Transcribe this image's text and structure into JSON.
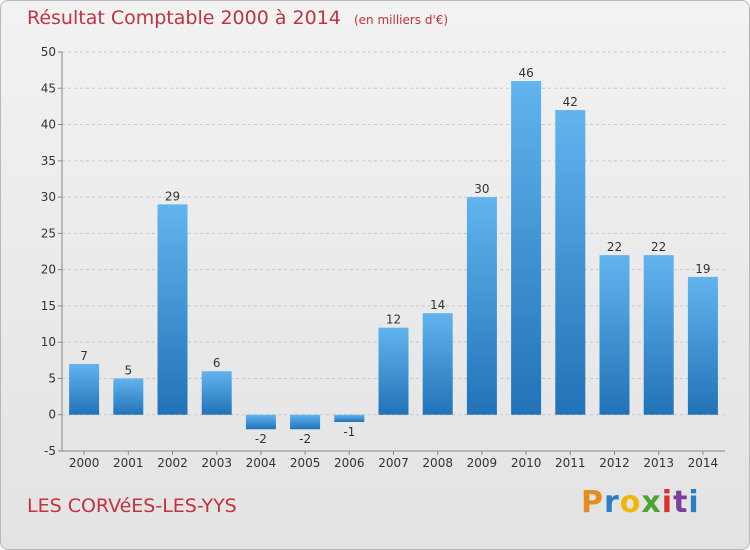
{
  "chart_data": {
    "type": "bar",
    "title": "Résultat Comptable 2000 à 2014",
    "subtitle": "(en milliers d'€)",
    "categories": [
      "2000",
      "2001",
      "2002",
      "2003",
      "2004",
      "2005",
      "2006",
      "2007",
      "2008",
      "2009",
      "2010",
      "2011",
      "2012",
      "2013",
      "2014"
    ],
    "values": [
      7,
      5,
      29,
      6,
      -2,
      -2,
      -1,
      12,
      14,
      30,
      46,
      42,
      22,
      22,
      19
    ],
    "data_labels": [
      "7",
      "5",
      "29",
      "6",
      "-2",
      "-2",
      "-1",
      "12",
      "14",
      "30",
      "46",
      "42",
      "22",
      "22",
      "19"
    ],
    "ylim": [
      -5,
      50
    ],
    "yticks": [
      -5,
      0,
      5,
      10,
      15,
      20,
      25,
      30,
      35,
      40,
      45,
      50
    ],
    "grid": true,
    "bar_color": "#3a8fd4",
    "title_color": "#c0333f"
  },
  "footer": {
    "city": "LES CORVéES-LES-YYS"
  },
  "logo": {
    "letters": [
      "P",
      "r",
      "o",
      "x",
      "i",
      "t",
      "i"
    ],
    "colors": [
      "#e48d1e",
      "#2a7fc1",
      "#f2b705",
      "#4aa332",
      "#d6312b",
      "#7a3fa0",
      "#2a7fc1"
    ]
  }
}
